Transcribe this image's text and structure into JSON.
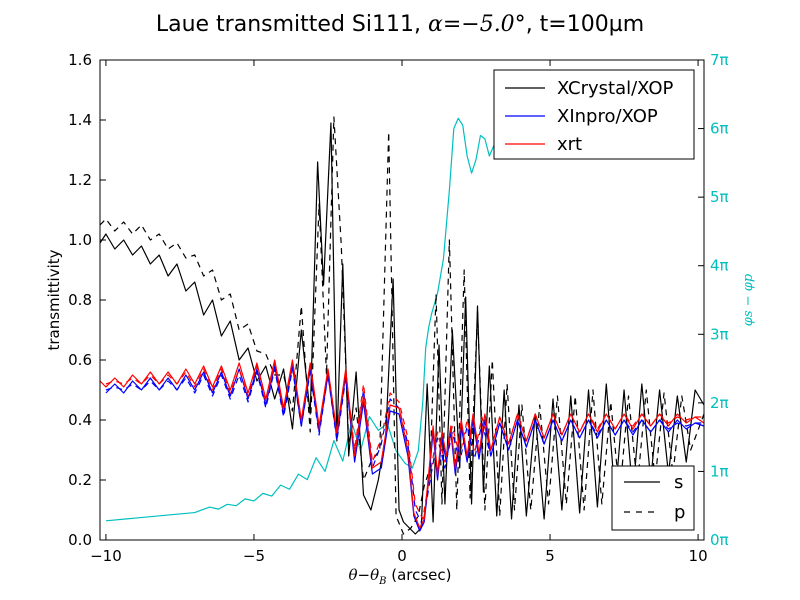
{
  "chart_data": {
    "type": "line",
    "title": {
      "prefix": "Laue transmitted Si111, ",
      "alpha_symbol": "α",
      "alpha_value": "=−5.0°",
      "suffix": ", t=100µm"
    },
    "xlabel": {
      "theta": "θ",
      "minus": "−",
      "theta_b": "θ",
      "sub_b": "B",
      "unit": "  (arcsec)"
    },
    "ylabel": "transmittivity",
    "y2label": "φs − φp",
    "xlim": [
      -10.2,
      10.2
    ],
    "ylim": [
      0,
      1.6
    ],
    "y2lim_pi": [
      0,
      7
    ],
    "xticks": [
      -10,
      -5,
      0,
      5,
      10
    ],
    "xtick_labels": [
      "−10",
      "−5",
      "0",
      "5",
      "10"
    ],
    "yticks": [
      0,
      0.2,
      0.4,
      0.6,
      0.8,
      1.0,
      1.2,
      1.4,
      1.6
    ],
    "ytick_labels": [
      "0.0",
      "0.2",
      "0.4",
      "0.6",
      "0.8",
      "1.0",
      "1.2",
      "1.4",
      "1.6"
    ],
    "y2ticks": [
      0,
      1,
      2,
      3,
      4,
      5,
      6,
      7
    ],
    "y2tick_labels": [
      "0π",
      "1π",
      "2π",
      "3π",
      "4π",
      "5π",
      "6π",
      "7π"
    ],
    "legend_top": [
      {
        "label": "XCrystal/XOP",
        "color": "#000000"
      },
      {
        "label": "XInpro/XOP",
        "color": "#0000ff"
      },
      {
        "label": "xrt",
        "color": "#ff0000"
      }
    ],
    "legend_bottom": [
      {
        "label": "s",
        "style": "solid"
      },
      {
        "label": "p",
        "style": "dashed"
      }
    ],
    "colors": {
      "xcrystal": "#000000",
      "xinpro": "#0000ff",
      "xrt": "#ff0000",
      "phase": "#00bfbf"
    },
    "series": [
      {
        "name": "XCrystal/XOP",
        "polarization": "s",
        "color": "#000000",
        "dash": "solid",
        "x": [
          -10.2,
          -10,
          -9.7,
          -9.4,
          -9.1,
          -8.8,
          -8.5,
          -8.2,
          -7.9,
          -7.6,
          -7.3,
          -7,
          -6.7,
          -6.4,
          -6.1,
          -5.8,
          -5.5,
          -5.2,
          -4.9,
          -4.6,
          -4.3,
          -4,
          -3.7,
          -3.4,
          -3.1,
          -2.85,
          -2.65,
          -2.4,
          -2.2,
          -2,
          -1.8,
          -1.55,
          -1.3,
          -1.05,
          -0.8,
          -0.55,
          -0.3,
          -0.1,
          0.05,
          0.25,
          0.45,
          0.65,
          0.85,
          1.05,
          1.25,
          1.45,
          1.7,
          1.95,
          2.15,
          2.35,
          2.55,
          2.75,
          2.95,
          3.2,
          3.45,
          3.7,
          3.95,
          4.2,
          4.5,
          4.8,
          5.1,
          5.4,
          5.7,
          6,
          6.3,
          6.6,
          6.9,
          7.2,
          7.5,
          7.8,
          8.1,
          8.4,
          8.7,
          9,
          9.3,
          9.6,
          9.9,
          10.2
        ],
        "y": [
          0.99,
          1.02,
          0.97,
          1.0,
          0.95,
          0.98,
          0.92,
          0.95,
          0.88,
          0.92,
          0.83,
          0.86,
          0.75,
          0.8,
          0.68,
          0.73,
          0.6,
          0.64,
          0.53,
          0.58,
          0.47,
          0.57,
          0.37,
          0.7,
          0.42,
          1.26,
          0.85,
          1.39,
          0.33,
          0.92,
          0.28,
          0.56,
          0.15,
          0.1,
          0.2,
          0.35,
          0.87,
          0.1,
          0.06,
          0.04,
          0.02,
          0.04,
          0.52,
          0.06,
          0.65,
          0.12,
          0.7,
          0.24,
          0.81,
          0.12,
          0.78,
          0.16,
          0.58,
          0.08,
          0.5,
          0.07,
          0.45,
          0.08,
          0.42,
          0.07,
          0.47,
          0.1,
          0.48,
          0.09,
          0.5,
          0.11,
          0.52,
          0.14,
          0.5,
          0.15,
          0.52,
          0.2,
          0.5,
          0.22,
          0.48,
          0.26,
          0.5,
          0.45
        ]
      },
      {
        "name": "XCrystal/XOP",
        "polarization": "p",
        "color": "#000000",
        "dash": "dashed",
        "x": [
          -10.2,
          -10,
          -9.7,
          -9.4,
          -9.1,
          -8.8,
          -8.5,
          -8.2,
          -7.9,
          -7.6,
          -7.3,
          -7,
          -6.7,
          -6.4,
          -6.1,
          -5.8,
          -5.5,
          -5.2,
          -4.9,
          -4.6,
          -4.3,
          -4,
          -3.7,
          -3.4,
          -3.1,
          -2.8,
          -2.55,
          -2.3,
          -2.05,
          -1.8,
          -1.55,
          -1.3,
          -1.05,
          -0.75,
          -0.45,
          -0.2,
          0.05,
          0.3,
          0.55,
          0.75,
          0.95,
          1.15,
          1.35,
          1.6,
          1.85,
          2.1,
          2.3,
          2.55,
          2.8,
          3.05,
          3.3,
          3.55,
          3.8,
          4.05,
          4.35,
          4.65,
          4.95,
          5.25,
          5.55,
          5.85,
          6.15,
          6.45,
          6.75,
          7.05,
          7.35,
          7.65,
          7.95,
          8.25,
          8.55,
          8.85,
          9.15,
          9.45,
          9.75,
          10.2
        ],
        "y": [
          1.05,
          1.07,
          1.03,
          1.06,
          1.02,
          1.05,
          1.0,
          1.02,
          0.97,
          0.99,
          0.94,
          0.95,
          0.88,
          0.9,
          0.8,
          0.82,
          0.7,
          0.72,
          0.63,
          0.62,
          0.55,
          0.55,
          0.43,
          0.78,
          0.36,
          1.12,
          0.55,
          1.41,
          0.98,
          0.32,
          0.44,
          0.2,
          0.26,
          0.3,
          1.36,
          0.08,
          0.02,
          0.04,
          0.08,
          0.18,
          0.24,
          0.82,
          0.12,
          1.0,
          0.1,
          0.9,
          0.14,
          0.76,
          0.1,
          0.6,
          0.08,
          0.52,
          0.1,
          0.45,
          0.1,
          0.45,
          0.12,
          0.48,
          0.12,
          0.48,
          0.1,
          0.5,
          0.12,
          0.46,
          0.15,
          0.48,
          0.18,
          0.5,
          0.2,
          0.49,
          0.22,
          0.48,
          0.3,
          0.42
        ]
      },
      {
        "name": "XInpro/XOP",
        "polarization": "s",
        "color": "#0000ff",
        "dash": "solid",
        "x": [
          -10,
          -9.7,
          -9.4,
          -9.1,
          -8.8,
          -8.5,
          -8.2,
          -7.9,
          -7.6,
          -7.3,
          -7,
          -6.7,
          -6.4,
          -6.1,
          -5.8,
          -5.5,
          -5.2,
          -4.9,
          -4.6,
          -4.3,
          -4,
          -3.7,
          -3.4,
          -3.1,
          -2.8,
          -2.5,
          -2.2,
          -1.9,
          -1.6,
          -1.3,
          -1,
          -0.7,
          -0.4,
          -0.1,
          0.2,
          0.4,
          0.6,
          0.75,
          0.9,
          1.05,
          1.2,
          1.35,
          1.5,
          1.65,
          1.8,
          2.0,
          2.2,
          2.4,
          2.6,
          2.8,
          3.0,
          3.3,
          3.6,
          3.9,
          4.2,
          4.5,
          4.8,
          5.1,
          5.4,
          5.7,
          6,
          6.3,
          6.6,
          6.9,
          7.2,
          7.5,
          7.8,
          8.1,
          8.4,
          8.7,
          9,
          9.3,
          9.6,
          9.9,
          10.2
        ],
        "y": [
          0.49,
          0.52,
          0.49,
          0.53,
          0.5,
          0.54,
          0.5,
          0.54,
          0.5,
          0.55,
          0.5,
          0.56,
          0.49,
          0.56,
          0.48,
          0.57,
          0.47,
          0.57,
          0.45,
          0.58,
          0.42,
          0.58,
          0.38,
          0.57,
          0.36,
          0.55,
          0.34,
          0.55,
          0.26,
          0.46,
          0.22,
          0.24,
          0.43,
          0.42,
          0.28,
          0.08,
          0.03,
          0.06,
          0.2,
          0.36,
          0.2,
          0.34,
          0.26,
          0.36,
          0.22,
          0.38,
          0.26,
          0.4,
          0.27,
          0.4,
          0.28,
          0.39,
          0.3,
          0.4,
          0.31,
          0.4,
          0.32,
          0.4,
          0.33,
          0.4,
          0.34,
          0.4,
          0.34,
          0.4,
          0.35,
          0.4,
          0.35,
          0.4,
          0.36,
          0.4,
          0.36,
          0.4,
          0.37,
          0.39,
          0.38
        ]
      },
      {
        "name": "XInpro/XOP",
        "polarization": "p",
        "color": "#0000ff",
        "dash": "dashed",
        "x": [
          -10,
          -9.7,
          -9.4,
          -9.1,
          -8.8,
          -8.5,
          -8.2,
          -7.9,
          -7.6,
          -7.3,
          -7,
          -6.7,
          -6.4,
          -6.1,
          -5.8,
          -5.5,
          -5.2,
          -4.9,
          -4.6,
          -4.3,
          -4,
          -3.7,
          -3.4,
          -3.1,
          -2.8,
          -2.5,
          -2.2,
          -1.9,
          -1.6,
          -1.3,
          -1,
          -0.7,
          -0.4,
          -0.1,
          0.2,
          0.45,
          0.7,
          0.95,
          1.2,
          1.45,
          1.7,
          1.95,
          2.2,
          2.45,
          2.7,
          3.0,
          3.3,
          3.6,
          3.9,
          4.2,
          4.5,
          4.8,
          5.1,
          5.4,
          5.7,
          6,
          6.3,
          6.6,
          6.9,
          7.2,
          7.5,
          7.8,
          8.1,
          8.4,
          8.7,
          9,
          9.3,
          9.6,
          9.9,
          10.2
        ],
        "y": [
          0.5,
          0.51,
          0.5,
          0.52,
          0.5,
          0.53,
          0.5,
          0.53,
          0.5,
          0.54,
          0.49,
          0.55,
          0.48,
          0.55,
          0.47,
          0.55,
          0.46,
          0.56,
          0.44,
          0.57,
          0.41,
          0.57,
          0.38,
          0.56,
          0.35,
          0.55,
          0.33,
          0.54,
          0.28,
          0.5,
          0.24,
          0.32,
          0.47,
          0.44,
          0.32,
          0.1,
          0.05,
          0.2,
          0.34,
          0.24,
          0.36,
          0.26,
          0.38,
          0.27,
          0.39,
          0.28,
          0.39,
          0.3,
          0.4,
          0.31,
          0.4,
          0.32,
          0.4,
          0.33,
          0.4,
          0.34,
          0.4,
          0.35,
          0.4,
          0.35,
          0.4,
          0.36,
          0.4,
          0.36,
          0.4,
          0.37,
          0.39,
          0.38,
          0.39,
          0.39
        ]
      },
      {
        "name": "xrt",
        "polarization": "s",
        "color": "#ff0000",
        "dash": "solid",
        "x": [
          -10.2,
          -10,
          -9.7,
          -9.4,
          -9.1,
          -8.8,
          -8.5,
          -8.2,
          -7.9,
          -7.6,
          -7.3,
          -7,
          -6.7,
          -6.4,
          -6.1,
          -5.8,
          -5.5,
          -5.2,
          -4.9,
          -4.6,
          -4.3,
          -4,
          -3.7,
          -3.4,
          -3.1,
          -2.8,
          -2.5,
          -2.2,
          -1.9,
          -1.6,
          -1.3,
          -1,
          -0.7,
          -0.4,
          -0.1,
          0.2,
          0.4,
          0.6,
          0.75,
          0.9,
          1.05,
          1.2,
          1.35,
          1.5,
          1.65,
          1.8,
          2.0,
          2.2,
          2.4,
          2.6,
          2.8,
          3.0,
          3.3,
          3.6,
          3.9,
          4.2,
          4.5,
          4.8,
          5.1,
          5.4,
          5.7,
          6,
          6.3,
          6.6,
          6.9,
          7.2,
          7.5,
          7.8,
          8.1,
          8.4,
          8.7,
          9,
          9.3,
          9.6,
          9.9,
          10.2
        ],
        "y": [
          0.53,
          0.51,
          0.54,
          0.51,
          0.55,
          0.52,
          0.56,
          0.52,
          0.56,
          0.52,
          0.57,
          0.52,
          0.58,
          0.51,
          0.58,
          0.5,
          0.59,
          0.49,
          0.59,
          0.47,
          0.6,
          0.44,
          0.6,
          0.4,
          0.59,
          0.38,
          0.57,
          0.36,
          0.57,
          0.28,
          0.48,
          0.24,
          0.26,
          0.45,
          0.44,
          0.3,
          0.09,
          0.04,
          0.07,
          0.22,
          0.38,
          0.22,
          0.36,
          0.28,
          0.38,
          0.24,
          0.4,
          0.28,
          0.42,
          0.29,
          0.42,
          0.3,
          0.41,
          0.32,
          0.42,
          0.33,
          0.42,
          0.34,
          0.42,
          0.35,
          0.42,
          0.36,
          0.42,
          0.36,
          0.42,
          0.37,
          0.42,
          0.37,
          0.42,
          0.38,
          0.42,
          0.38,
          0.42,
          0.39,
          0.41,
          0.39
        ]
      },
      {
        "name": "xrt",
        "polarization": "p",
        "color": "#ff0000",
        "dash": "dashed",
        "x": [
          -10,
          -9.7,
          -9.4,
          -9.1,
          -8.8,
          -8.5,
          -8.2,
          -7.9,
          -7.6,
          -7.3,
          -7,
          -6.7,
          -6.4,
          -6.1,
          -5.8,
          -5.5,
          -5.2,
          -4.9,
          -4.6,
          -4.3,
          -4,
          -3.7,
          -3.4,
          -3.1,
          -2.8,
          -2.5,
          -2.2,
          -1.9,
          -1.6,
          -1.3,
          -1,
          -0.7,
          -0.4,
          -0.1,
          0.2,
          0.45,
          0.7,
          0.95,
          1.2,
          1.45,
          1.7,
          1.95,
          2.2,
          2.45,
          2.7,
          3.0,
          3.3,
          3.6,
          3.9,
          4.2,
          4.5,
          4.8,
          5.1,
          5.4,
          5.7,
          6,
          6.3,
          6.6,
          6.9,
          7.2,
          7.5,
          7.8,
          8.1,
          8.4,
          8.7,
          9,
          9.3,
          9.6,
          9.9,
          10.2
        ],
        "y": [
          0.52,
          0.53,
          0.52,
          0.54,
          0.52,
          0.55,
          0.52,
          0.55,
          0.52,
          0.56,
          0.51,
          0.57,
          0.5,
          0.57,
          0.49,
          0.57,
          0.48,
          0.58,
          0.46,
          0.59,
          0.43,
          0.59,
          0.4,
          0.58,
          0.37,
          0.57,
          0.35,
          0.56,
          0.3,
          0.52,
          0.26,
          0.34,
          0.49,
          0.46,
          0.34,
          0.12,
          0.07,
          0.22,
          0.36,
          0.26,
          0.38,
          0.28,
          0.4,
          0.29,
          0.41,
          0.3,
          0.41,
          0.32,
          0.42,
          0.33,
          0.42,
          0.34,
          0.42,
          0.35,
          0.42,
          0.36,
          0.42,
          0.37,
          0.42,
          0.37,
          0.42,
          0.38,
          0.42,
          0.38,
          0.42,
          0.39,
          0.41,
          0.4,
          0.41,
          0.41
        ]
      },
      {
        "name": "φs − φp",
        "axis": "right",
        "unit": "pi",
        "color": "#00bfbf",
        "dash": "solid",
        "x": [
          -10,
          -9,
          -8,
          -7,
          -6.5,
          -6.2,
          -5.9,
          -5.6,
          -5.3,
          -5.0,
          -4.7,
          -4.4,
          -4.1,
          -3.8,
          -3.5,
          -3.2,
          -2.9,
          -2.6,
          -2.3,
          -2.0,
          -1.7,
          -1.4,
          -1.1,
          -0.8,
          -0.5,
          -0.2,
          0.1,
          0.35,
          0.55,
          0.7,
          0.8,
          0.9,
          1.0,
          1.2,
          1.4,
          1.6,
          1.75,
          1.9,
          2.05,
          2.2,
          2.35,
          2.5,
          2.65,
          2.8,
          2.95,
          3.1,
          3.25,
          3.4
        ],
        "y": [
          0.28,
          0.32,
          0.36,
          0.4,
          0.48,
          0.45,
          0.52,
          0.5,
          0.6,
          0.57,
          0.68,
          0.64,
          0.8,
          0.74,
          0.96,
          0.88,
          1.2,
          1.0,
          1.45,
          1.15,
          1.72,
          1.3,
          1.8,
          1.6,
          1.7,
          1.3,
          1.12,
          1.05,
          1.3,
          2.0,
          2.8,
          3.1,
          3.3,
          3.6,
          4.1,
          5.1,
          6.0,
          6.15,
          6.05,
          5.6,
          5.35,
          5.55,
          5.9,
          5.85,
          5.6,
          5.75,
          5.65,
          5.7
        ]
      }
    ]
  }
}
